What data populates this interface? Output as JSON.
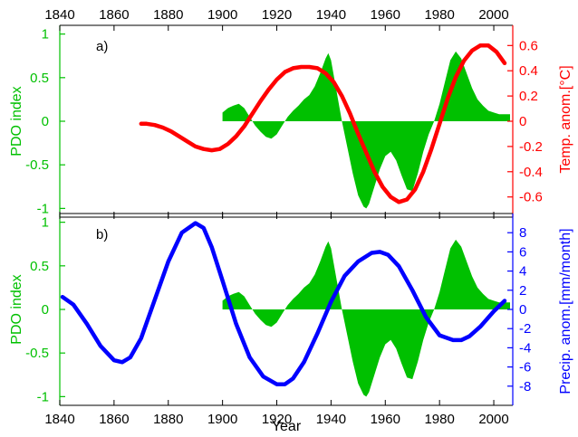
{
  "colors": {
    "pdo_fill": "#00c000",
    "temperature": "#ff0000",
    "precipitation": "#0000ff",
    "axis": "#000000"
  },
  "chart_data": [
    {
      "type": "area",
      "panel_label": "a)",
      "xlabel": "",
      "xlim": [
        1840,
        2007
      ],
      "x_ticks": [
        1840,
        1860,
        1880,
        1900,
        1920,
        1940,
        1960,
        1980,
        2000
      ],
      "x_ticks_position": "top",
      "ylabel": "PDO index",
      "ylim": [
        -1.1,
        1.1
      ],
      "y_ticks": [
        -1,
        -0.5,
        0,
        0.5,
        1
      ],
      "y_tick_labels": [
        "-1",
        "-0.5",
        "0",
        "0.5",
        "1"
      ],
      "y2label": "Temp. anom.[°C]",
      "y2lim": [
        -0.76,
        0.76
      ],
      "y2_ticks": [
        -0.6,
        -0.4,
        -0.2,
        0,
        0.2,
        0.4,
        0.6
      ],
      "y2_tick_labels": [
        "-0.6",
        "-0.4",
        "-0.2",
        "0",
        "0.2",
        "0.4",
        "0.6"
      ],
      "grid": false,
      "series": [
        {
          "kind": "filled-area",
          "axis": "left",
          "x": [
            1900,
            1902,
            1904,
            1906,
            1908,
            1910,
            1912,
            1914,
            1916,
            1918,
            1920,
            1922,
            1924,
            1926,
            1928,
            1930,
            1932,
            1934,
            1936,
            1938,
            1939,
            1940,
            1942,
            1944,
            1946,
            1948,
            1950,
            1952,
            1953,
            1954,
            1956,
            1958,
            1960,
            1962,
            1964,
            1966,
            1968,
            1970,
            1972,
            1974,
            1976,
            1978,
            1980,
            1982,
            1984,
            1986,
            1988,
            1990,
            1992,
            1994,
            1996,
            1998,
            2000,
            2002,
            2004,
            2006
          ],
          "values": [
            0.1,
            0.15,
            0.18,
            0.2,
            0.15,
            0.05,
            -0.05,
            -0.12,
            -0.18,
            -0.2,
            -0.15,
            -0.05,
            0.05,
            0.12,
            0.18,
            0.25,
            0.3,
            0.4,
            0.55,
            0.72,
            0.78,
            0.7,
            0.35,
            0.0,
            -0.3,
            -0.6,
            -0.85,
            -0.98,
            -1.0,
            -0.95,
            -0.75,
            -0.55,
            -0.4,
            -0.35,
            -0.45,
            -0.62,
            -0.78,
            -0.8,
            -0.6,
            -0.35,
            -0.15,
            0.0,
            0.2,
            0.45,
            0.7,
            0.8,
            0.72,
            0.55,
            0.38,
            0.25,
            0.18,
            0.12,
            0.1,
            0.08,
            0.08,
            0.08
          ]
        },
        {
          "kind": "line",
          "axis": "right",
          "x": [
            1870,
            1872,
            1875,
            1878,
            1881,
            1884,
            1887,
            1890,
            1893,
            1896,
            1899,
            1902,
            1905,
            1908,
            1911,
            1914,
            1917,
            1920,
            1923,
            1926,
            1929,
            1932,
            1935,
            1938,
            1941,
            1944,
            1947,
            1950,
            1953,
            1956,
            1959,
            1962,
            1965,
            1968,
            1971,
            1974,
            1977,
            1980,
            1983,
            1986,
            1989,
            1992,
            1995,
            1998,
            2001,
            2004
          ],
          "values": [
            -0.02,
            -0.02,
            -0.03,
            -0.05,
            -0.08,
            -0.12,
            -0.16,
            -0.2,
            -0.22,
            -0.23,
            -0.22,
            -0.18,
            -0.12,
            -0.04,
            0.06,
            0.16,
            0.25,
            0.33,
            0.39,
            0.42,
            0.43,
            0.43,
            0.42,
            0.38,
            0.31,
            0.2,
            0.06,
            -0.1,
            -0.25,
            -0.4,
            -0.52,
            -0.6,
            -0.64,
            -0.62,
            -0.54,
            -0.4,
            -0.22,
            -0.02,
            0.18,
            0.35,
            0.48,
            0.56,
            0.6,
            0.6,
            0.55,
            0.46
          ]
        }
      ]
    },
    {
      "type": "area",
      "panel_label": "b)",
      "xlabel": "Year",
      "xlim": [
        1840,
        2007
      ],
      "x_ticks": [
        1840,
        1860,
        1880,
        1900,
        1920,
        1940,
        1960,
        1980,
        2000
      ],
      "x_ticks_position": "bottom",
      "ylabel": "PDO index",
      "ylim": [
        -1.1,
        1.1
      ],
      "y_ticks": [
        -1,
        -0.5,
        0,
        0.5,
        1
      ],
      "y_tick_labels": [
        "-1",
        "-0.5",
        "0",
        "0.5",
        "1"
      ],
      "y2label": "Precip. anom.[mm/month]",
      "y2lim": [
        -10,
        10
      ],
      "y2_ticks": [
        -8,
        -6,
        -4,
        -2,
        0,
        2,
        4,
        6,
        8
      ],
      "y2_tick_labels": [
        "-8",
        "-6",
        "-4",
        "-2",
        "0",
        "2",
        "4",
        "6",
        "8"
      ],
      "grid": false,
      "series": [
        {
          "kind": "filled-area",
          "axis": "left",
          "x": [
            1900,
            1902,
            1904,
            1906,
            1908,
            1910,
            1912,
            1914,
            1916,
            1918,
            1920,
            1922,
            1924,
            1926,
            1928,
            1930,
            1932,
            1934,
            1936,
            1938,
            1939,
            1940,
            1942,
            1944,
            1946,
            1948,
            1950,
            1952,
            1953,
            1954,
            1956,
            1958,
            1960,
            1962,
            1964,
            1966,
            1968,
            1970,
            1972,
            1974,
            1976,
            1978,
            1980,
            1982,
            1984,
            1986,
            1988,
            1990,
            1992,
            1994,
            1996,
            1998,
            2000,
            2002,
            2004,
            2006
          ],
          "values": [
            0.1,
            0.15,
            0.18,
            0.2,
            0.15,
            0.05,
            -0.05,
            -0.12,
            -0.18,
            -0.2,
            -0.15,
            -0.05,
            0.05,
            0.12,
            0.18,
            0.25,
            0.3,
            0.4,
            0.55,
            0.72,
            0.78,
            0.7,
            0.35,
            0.0,
            -0.3,
            -0.6,
            -0.85,
            -0.98,
            -1.0,
            -0.95,
            -0.75,
            -0.55,
            -0.4,
            -0.35,
            -0.45,
            -0.62,
            -0.78,
            -0.8,
            -0.6,
            -0.35,
            -0.15,
            0.0,
            0.2,
            0.45,
            0.7,
            0.8,
            0.72,
            0.55,
            0.38,
            0.25,
            0.18,
            0.12,
            0.1,
            0.08,
            0.08,
            0.08
          ]
        },
        {
          "kind": "line",
          "axis": "right",
          "x": [
            1841,
            1845,
            1850,
            1855,
            1860,
            1863,
            1866,
            1870,
            1875,
            1880,
            1885,
            1890,
            1893,
            1896,
            1900,
            1905,
            1910,
            1915,
            1920,
            1923,
            1926,
            1930,
            1935,
            1940,
            1945,
            1950,
            1955,
            1958,
            1961,
            1965,
            1970,
            1975,
            1980,
            1985,
            1988,
            1991,
            1995,
            2000,
            2004
          ],
          "values": [
            1.3,
            0.5,
            -1.5,
            -3.8,
            -5.3,
            -5.5,
            -5.0,
            -3.0,
            1.0,
            5.0,
            8.0,
            9.0,
            8.5,
            6.5,
            3.0,
            -1.5,
            -5.0,
            -7.0,
            -7.8,
            -7.8,
            -7.2,
            -5.5,
            -2.5,
            0.8,
            3.5,
            5.0,
            5.9,
            6.0,
            5.7,
            4.5,
            2.0,
            -0.8,
            -2.7,
            -3.2,
            -3.2,
            -2.8,
            -1.8,
            -0.2,
            0.9
          ]
        }
      ]
    }
  ]
}
